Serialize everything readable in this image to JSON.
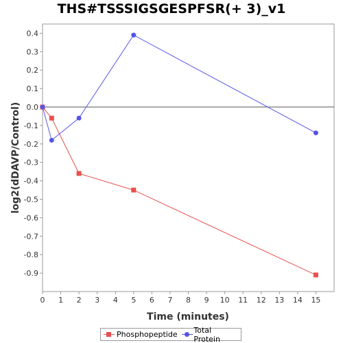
{
  "chart_data": {
    "type": "line",
    "title": "THS#TSSSIGSGESPFSR(+ 3)_v1",
    "xlabel": "Time (minutes)",
    "ylabel": "log2(dDAVP/Control)",
    "xlim": [
      0,
      16
    ],
    "ylim": [
      -1.0,
      0.45
    ],
    "x_ticks": [
      0,
      1,
      2,
      3,
      4,
      5,
      6,
      7,
      8,
      9,
      10,
      11,
      12,
      13,
      14,
      15
    ],
    "x_tick_labels": [
      "0",
      "1",
      "2",
      "3",
      "4",
      "5",
      "6",
      "7",
      "8",
      "9",
      "10",
      "11",
      "12",
      "13",
      "14",
      "15"
    ],
    "y_ticks": [
      0.4,
      0.3,
      0.2,
      0.1,
      0.0,
      -0.1,
      -0.2,
      -0.3,
      -0.4,
      -0.5,
      -0.6,
      -0.7,
      -0.8,
      -0.9
    ],
    "y_tick_labels": [
      "0.4",
      "0.3",
      "0.2",
      "0.1",
      "0.0",
      "-0.1",
      "-0.2",
      "-0.3",
      "-0.4",
      "-0.5",
      "-0.6",
      "-0.7",
      "-0.8",
      "-0.9"
    ],
    "zero_line": true,
    "grid": false,
    "legend_position": "bottom",
    "series": [
      {
        "name": "Phosphopeptide",
        "color": "#e8504f",
        "marker": "square",
        "x": [
          0,
          0.5,
          2,
          5,
          15
        ],
        "y": [
          0.0,
          -0.06,
          -0.36,
          -0.45,
          -0.91
        ]
      },
      {
        "name": "Total Protein",
        "color": "#5554e6",
        "marker": "circle",
        "x": [
          0,
          0.5,
          2,
          5,
          15
        ],
        "y": [
          0.0,
          -0.18,
          -0.06,
          0.39,
          -0.14
        ]
      }
    ]
  }
}
